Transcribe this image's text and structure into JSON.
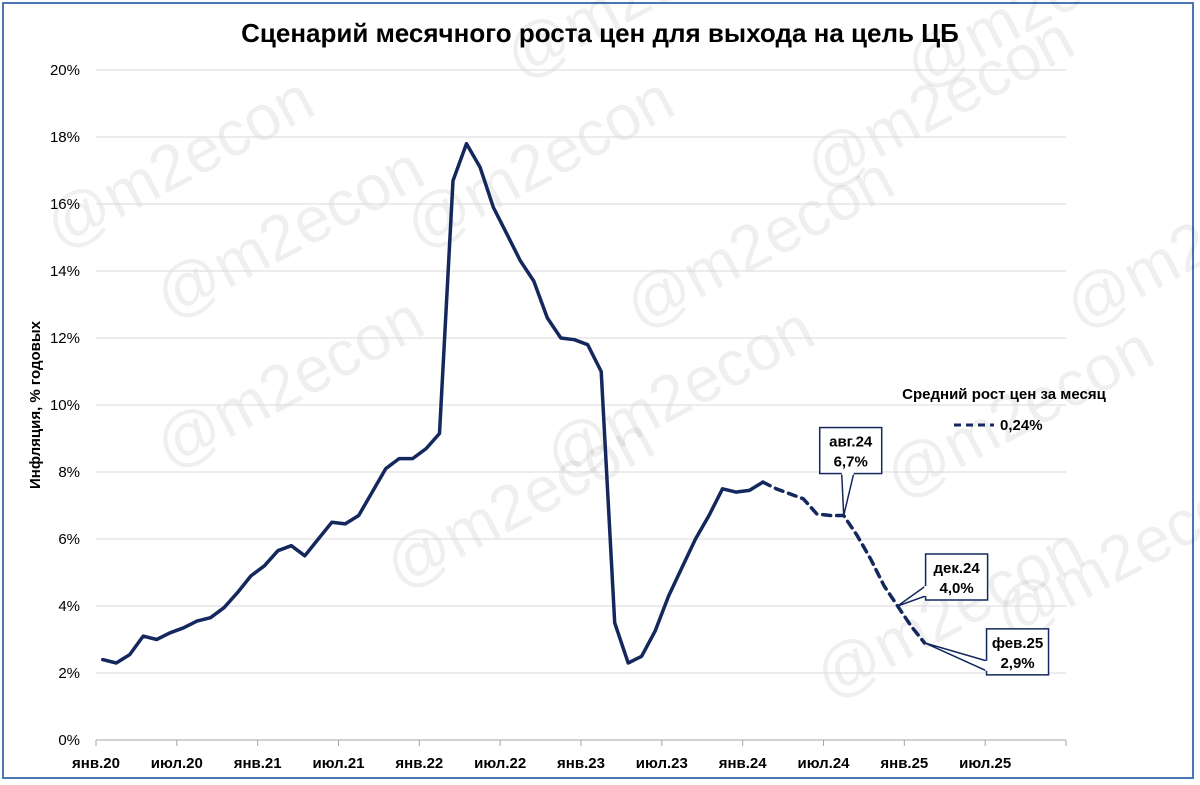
{
  "watermark": "@m2econ",
  "chart_data": {
    "type": "line",
    "title": "Сценарий месячного роста цен для выхода на цель ЦБ",
    "ylabel": "Инфляция, % годовых",
    "xlabel": "",
    "ylim": [
      0,
      20
    ],
    "yticks": [
      "0%",
      "2%",
      "4%",
      "6%",
      "8%",
      "10%",
      "12%",
      "14%",
      "16%",
      "18%",
      "20%"
    ],
    "x_range": [
      "2020-01",
      "2025-12"
    ],
    "xticks": [
      {
        "date": "2020-01",
        "label": "янв.20"
      },
      {
        "date": "2020-07",
        "label": "июл.20"
      },
      {
        "date": "2021-01",
        "label": "янв.21"
      },
      {
        "date": "2021-07",
        "label": "июл.21"
      },
      {
        "date": "2022-01",
        "label": "янв.22"
      },
      {
        "date": "2022-07",
        "label": "июл.22"
      },
      {
        "date": "2023-01",
        "label": "янв.23"
      },
      {
        "date": "2023-07",
        "label": "июл.23"
      },
      {
        "date": "2024-01",
        "label": "янв.24"
      },
      {
        "date": "2024-07",
        "label": "июл.24"
      },
      {
        "date": "2025-01",
        "label": "янв.25"
      },
      {
        "date": "2025-07",
        "label": "июл.25"
      }
    ],
    "grid": true,
    "colors": {
      "line": "#14285e",
      "grid": "#d9d9d9",
      "axis": "#a6a6a6",
      "frame": "#4a77b4"
    },
    "series": [
      {
        "style": "solid",
        "x": [
          "2020-01",
          "2020-02",
          "2020-03",
          "2020-04",
          "2020-05",
          "2020-06",
          "2020-07",
          "2020-08",
          "2020-09",
          "2020-10",
          "2020-11",
          "2020-12",
          "2021-01",
          "2021-02",
          "2021-03",
          "2021-04",
          "2021-05",
          "2021-06",
          "2021-07",
          "2021-08",
          "2021-09",
          "2021-10",
          "2021-11",
          "2021-12",
          "2022-01",
          "2022-02",
          "2022-03",
          "2022-04",
          "2022-05",
          "2022-06",
          "2022-07",
          "2022-08",
          "2022-09",
          "2022-10",
          "2022-11",
          "2022-12",
          "2023-01",
          "2023-02",
          "2023-03",
          "2023-04",
          "2023-05",
          "2023-06",
          "2023-07",
          "2023-08",
          "2023-09",
          "2023-10",
          "2023-11",
          "2023-12",
          "2024-01",
          "2024-02"
        ],
        "values": [
          2.4,
          2.3,
          2.55,
          3.1,
          3.0,
          3.2,
          3.35,
          3.55,
          3.65,
          3.95,
          4.4,
          4.9,
          5.2,
          5.65,
          5.8,
          5.5,
          6.0,
          6.5,
          6.45,
          6.7,
          7.4,
          8.1,
          8.4,
          8.4,
          8.7,
          9.15,
          16.7,
          17.8,
          17.1,
          15.9,
          15.1,
          14.3,
          13.7,
          12.6,
          12.0,
          11.95,
          11.8,
          11.0,
          3.5,
          2.3,
          2.5,
          3.25,
          4.3,
          5.15,
          6.0,
          6.7,
          7.5,
          7.4,
          7.45,
          7.7
        ]
      },
      {
        "name": "0,24%",
        "style": "dashed",
        "x": [
          "2024-02",
          "2024-03",
          "2024-04",
          "2024-05",
          "2024-06",
          "2024-07",
          "2024-08",
          "2024-09",
          "2024-10",
          "2024-11",
          "2024-12",
          "2025-01",
          "2025-02"
        ],
        "values": [
          7.7,
          7.5,
          7.35,
          7.2,
          6.75,
          6.7,
          6.7,
          6.1,
          5.4,
          4.6,
          4.0,
          3.4,
          2.9
        ]
      }
    ],
    "legend": {
      "title": "Средний рост цен за месяц",
      "position": "right"
    },
    "annotations": [
      {
        "date": "2024-08",
        "label": "авг.24",
        "value": "6,7%",
        "y": 6.7
      },
      {
        "date": "2024-12",
        "label": "дек.24",
        "value": "4,0%",
        "y": 4.0
      },
      {
        "date": "2025-02",
        "label": "фев.25",
        "value": "2,9%",
        "y": 2.9
      }
    ]
  }
}
